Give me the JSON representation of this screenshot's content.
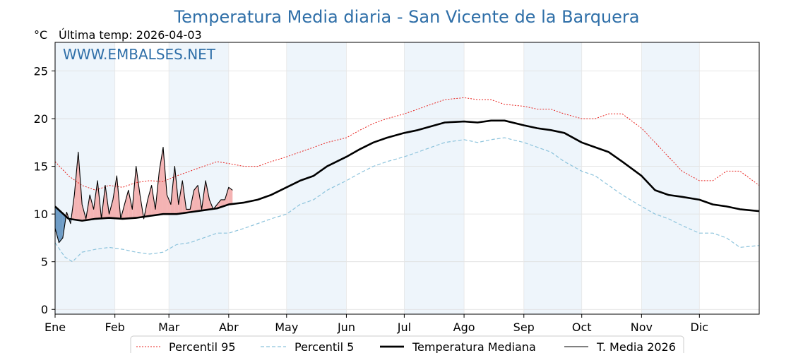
{
  "chart_data": {
    "type": "line",
    "title": "Temperatura Media diaria - San Vicente de la Barquera",
    "unit": "°C",
    "last_temp_label": "Última temp: 2026-04-03",
    "watermark": "WWW.EMBALSES.NET",
    "ylim": [
      -0.5,
      28
    ],
    "yticks": [
      0,
      5,
      10,
      15,
      20,
      25
    ],
    "xlim": [
      1,
      366
    ],
    "month_ticks": [
      {
        "day": 1,
        "label": "Ene"
      },
      {
        "day": 32,
        "label": "Feb"
      },
      {
        "day": 60,
        "label": "Mar"
      },
      {
        "day": 91,
        "label": "Abr"
      },
      {
        "day": 121,
        "label": "May"
      },
      {
        "day": 152,
        "label": "Jun"
      },
      {
        "day": 182,
        "label": "Jul"
      },
      {
        "day": 213,
        "label": "Ago"
      },
      {
        "day": 244,
        "label": "Sep"
      },
      {
        "day": 274,
        "label": "Oct"
      },
      {
        "day": 305,
        "label": "Nov"
      },
      {
        "day": 335,
        "label": "Dic"
      }
    ],
    "shaded_months": [
      [
        1,
        32
      ],
      [
        60,
        91
      ],
      [
        121,
        152
      ],
      [
        182,
        213
      ],
      [
        244,
        274
      ],
      [
        305,
        335
      ]
    ],
    "grid": true,
    "legend_position": "bottom",
    "colors": {
      "p95": "#e8231f",
      "p5": "#8cc3dc",
      "median": "#000000",
      "current": "#000000",
      "above": "#f4b3b3",
      "below": "#6e9cc6",
      "band": "#eef5fb",
      "title": "#2f6fa8"
    },
    "series": [
      {
        "key": "p95",
        "name": "Percentil 95",
        "style": "dotted",
        "x": [
          1,
          8,
          15,
          22,
          29,
          36,
          43,
          50,
          57,
          64,
          71,
          78,
          85,
          91,
          99,
          106,
          113,
          121,
          128,
          135,
          142,
          152,
          159,
          166,
          173,
          182,
          189,
          196,
          203,
          213,
          220,
          227,
          234,
          244,
          251,
          258,
          265,
          274,
          281,
          288,
          295,
          305,
          312,
          319,
          326,
          335,
          342,
          349,
          356,
          366
        ],
        "y": [
          15.5,
          14.0,
          13.0,
          12.5,
          13.0,
          12.8,
          13.3,
          13.5,
          13.4,
          14.0,
          14.5,
          15.0,
          15.5,
          15.3,
          15.0,
          15.0,
          15.5,
          16.0,
          16.5,
          17.0,
          17.5,
          18.0,
          18.8,
          19.5,
          20.0,
          20.5,
          21.0,
          21.5,
          22.0,
          22.2,
          22.0,
          22.0,
          21.5,
          21.3,
          21.0,
          21.0,
          20.5,
          20.0,
          20.0,
          20.5,
          20.5,
          19.0,
          17.5,
          16.0,
          14.5,
          13.5,
          13.5,
          14.5,
          14.5,
          13.0
        ]
      },
      {
        "key": "p5",
        "name": "Percentil 5",
        "style": "dashed",
        "x": [
          1,
          6,
          10,
          15,
          22,
          29,
          36,
          43,
          50,
          57,
          64,
          71,
          78,
          85,
          91,
          99,
          106,
          113,
          121,
          128,
          135,
          142,
          152,
          159,
          166,
          173,
          182,
          189,
          196,
          203,
          213,
          220,
          227,
          234,
          244,
          251,
          258,
          265,
          274,
          281,
          288,
          295,
          305,
          312,
          319,
          326,
          335,
          342,
          349,
          356,
          366
        ],
        "y": [
          7.0,
          5.5,
          5.0,
          6.0,
          6.3,
          6.5,
          6.3,
          6.0,
          5.8,
          6.0,
          6.8,
          7.0,
          7.5,
          8.0,
          8.0,
          8.5,
          9.0,
          9.5,
          10.0,
          11.0,
          11.5,
          12.5,
          13.5,
          14.3,
          15.0,
          15.5,
          16.0,
          16.5,
          17.0,
          17.5,
          17.8,
          17.5,
          17.8,
          18.0,
          17.5,
          17.0,
          16.5,
          15.5,
          14.5,
          14.0,
          13.0,
          12.0,
          10.8,
          10.0,
          9.5,
          8.8,
          8.0,
          8.0,
          7.5,
          6.5,
          6.7
        ]
      },
      {
        "key": "median",
        "name": "Temperatura Mediana",
        "style": "thick",
        "x": [
          1,
          8,
          15,
          22,
          29,
          36,
          43,
          50,
          57,
          64,
          71,
          78,
          85,
          91,
          99,
          106,
          113,
          121,
          128,
          135,
          142,
          152,
          159,
          166,
          173,
          182,
          189,
          196,
          203,
          213,
          220,
          227,
          234,
          244,
          251,
          258,
          265,
          274,
          281,
          288,
          295,
          305,
          312,
          319,
          326,
          335,
          342,
          349,
          356,
          366
        ],
        "y": [
          10.8,
          9.5,
          9.3,
          9.5,
          9.6,
          9.5,
          9.6,
          9.8,
          10.0,
          10.0,
          10.2,
          10.4,
          10.6,
          11.0,
          11.2,
          11.5,
          12.0,
          12.8,
          13.5,
          14.0,
          15.0,
          16.0,
          16.8,
          17.5,
          18.0,
          18.5,
          18.8,
          19.2,
          19.6,
          19.7,
          19.6,
          19.8,
          19.8,
          19.3,
          19.0,
          18.8,
          18.5,
          17.5,
          17.0,
          16.5,
          15.5,
          14.0,
          12.5,
          12.0,
          11.8,
          11.5,
          11.0,
          10.8,
          10.5,
          10.3
        ]
      },
      {
        "key": "current",
        "name": "T. Media 2026",
        "style": "thin",
        "x": [
          1,
          3,
          5,
          7,
          9,
          11,
          13,
          15,
          17,
          19,
          21,
          23,
          25,
          27,
          29,
          31,
          33,
          35,
          37,
          39,
          41,
          43,
          45,
          47,
          49,
          51,
          53,
          55,
          57,
          59,
          61,
          63,
          65,
          67,
          69,
          71,
          73,
          75,
          77,
          79,
          81,
          83,
          85,
          87,
          89,
          91,
          93
        ],
        "y": [
          8.5,
          7.0,
          7.5,
          10.2,
          9.0,
          12.0,
          16.5,
          11.0,
          9.5,
          12.0,
          10.5,
          13.5,
          9.5,
          13.0,
          10.0,
          11.5,
          14.0,
          9.5,
          11.0,
          12.5,
          10.5,
          15.0,
          12.0,
          9.5,
          11.5,
          13.0,
          10.5,
          14.5,
          17.0,
          12.0,
          11.0,
          15.0,
          11.0,
          13.5,
          10.5,
          10.5,
          12.5,
          13.0,
          10.5,
          13.5,
          11.5,
          10.5,
          11.0,
          11.5,
          11.5,
          12.8,
          12.5
        ]
      }
    ]
  }
}
